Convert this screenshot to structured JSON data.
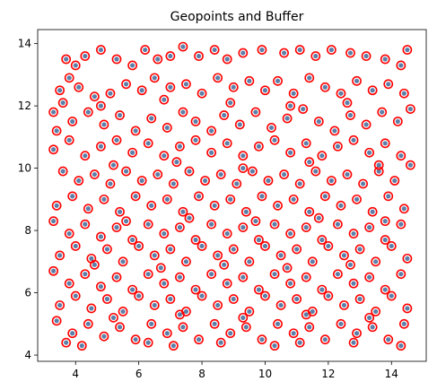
{
  "chart_data": {
    "type": "scatter",
    "title": "Geopoints and Buffer",
    "xlabel": "",
    "ylabel": "",
    "xlim": [
      2.8,
      15.1
    ],
    "ylim": [
      3.8,
      14.45
    ],
    "xticks": [
      4,
      6,
      8,
      10,
      12,
      14
    ],
    "yticks": [
      4,
      6,
      8,
      10,
      12,
      14
    ],
    "grid": false,
    "legend": "none",
    "colors": {
      "point_fill": "#5b7fa8",
      "buffer_outline": "#ff0000",
      "axes": "#000000",
      "background": "#ffffff"
    },
    "series": [
      {
        "marker": "point-with-buffer",
        "points": [
          [
            3.3,
            11.8
          ],
          [
            3.5,
            12.5
          ],
          [
            3.8,
            12.9
          ],
          [
            4.0,
            13.3
          ],
          [
            3.7,
            13.5
          ],
          [
            4.3,
            13.6
          ],
          [
            4.8,
            13.8
          ],
          [
            5.3,
            13.5
          ],
          [
            5.8,
            13.3
          ],
          [
            6.2,
            13.8
          ],
          [
            6.6,
            13.5
          ],
          [
            7.0,
            13.6
          ],
          [
            7.4,
            13.9
          ],
          [
            7.9,
            13.6
          ],
          [
            8.4,
            13.8
          ],
          [
            8.8,
            13.5
          ],
          [
            9.3,
            13.7
          ],
          [
            9.9,
            13.8
          ],
          [
            10.6,
            13.7
          ],
          [
            11.1,
            13.8
          ],
          [
            11.6,
            13.6
          ],
          [
            12.1,
            13.8
          ],
          [
            12.7,
            13.7
          ],
          [
            13.2,
            13.6
          ],
          [
            13.8,
            13.5
          ],
          [
            14.3,
            13.3
          ],
          [
            14.5,
            13.8
          ],
          [
            3.6,
            12.1
          ],
          [
            4.1,
            12.6
          ],
          [
            4.6,
            12.3
          ],
          [
            5.1,
            12.4
          ],
          [
            5.6,
            12.7
          ],
          [
            6.1,
            12.5
          ],
          [
            6.5,
            12.9
          ],
          [
            7.0,
            12.6
          ],
          [
            7.5,
            12.7
          ],
          [
            8.0,
            12.4
          ],
          [
            8.5,
            12.9
          ],
          [
            9.0,
            12.6
          ],
          [
            9.5,
            12.8
          ],
          [
            10.0,
            12.5
          ],
          [
            10.4,
            12.8
          ],
          [
            10.9,
            12.4
          ],
          [
            11.4,
            12.9
          ],
          [
            11.9,
            12.6
          ],
          [
            12.4,
            12.4
          ],
          [
            12.9,
            12.8
          ],
          [
            13.4,
            12.5
          ],
          [
            13.9,
            12.7
          ],
          [
            14.4,
            12.4
          ],
          [
            3.4,
            11.2
          ],
          [
            3.9,
            11.5
          ],
          [
            4.4,
            11.8
          ],
          [
            4.9,
            11.4
          ],
          [
            5.4,
            11.7
          ],
          [
            5.9,
            11.2
          ],
          [
            6.4,
            11.6
          ],
          [
            6.9,
            11.3
          ],
          [
            7.4,
            11.8
          ],
          [
            7.8,
            11.5
          ],
          [
            8.3,
            11.2
          ],
          [
            8.7,
            11.7
          ],
          [
            9.2,
            11.4
          ],
          [
            9.7,
            11.8
          ],
          [
            10.2,
            11.3
          ],
          [
            10.7,
            11.6
          ],
          [
            11.2,
            11.9
          ],
          [
            11.7,
            11.5
          ],
          [
            12.2,
            11.2
          ],
          [
            12.7,
            11.7
          ],
          [
            13.2,
            11.4
          ],
          [
            13.7,
            11.8
          ],
          [
            14.2,
            11.5
          ],
          [
            14.6,
            11.9
          ],
          [
            3.3,
            10.6
          ],
          [
            3.8,
            10.9
          ],
          [
            4.3,
            10.4
          ],
          [
            4.8,
            10.7
          ],
          [
            5.3,
            10.9
          ],
          [
            5.8,
            10.5
          ],
          [
            6.3,
            10.8
          ],
          [
            6.8,
            10.4
          ],
          [
            7.3,
            10.7
          ],
          [
            7.8,
            10.9
          ],
          [
            8.3,
            10.5
          ],
          [
            8.8,
            10.8
          ],
          [
            9.3,
            10.4
          ],
          [
            9.8,
            10.7
          ],
          [
            10.3,
            10.9
          ],
          [
            10.8,
            10.5
          ],
          [
            11.3,
            10.8
          ],
          [
            11.8,
            10.4
          ],
          [
            12.3,
            10.7
          ],
          [
            12.8,
            10.9
          ],
          [
            13.3,
            10.5
          ],
          [
            13.8,
            10.8
          ],
          [
            14.3,
            10.4
          ],
          [
            3.6,
            9.9
          ],
          [
            4.1,
            9.6
          ],
          [
            4.6,
            9.8
          ],
          [
            5.1,
            9.5
          ],
          [
            5.6,
            9.9
          ],
          [
            6.1,
            9.6
          ],
          [
            6.6,
            9.8
          ],
          [
            7.1,
            9.5
          ],
          [
            7.6,
            9.9
          ],
          [
            8.1,
            9.6
          ],
          [
            8.6,
            9.8
          ],
          [
            9.1,
            9.5
          ],
          [
            9.6,
            9.9
          ],
          [
            10.1,
            9.6
          ],
          [
            10.6,
            9.8
          ],
          [
            11.1,
            9.5
          ],
          [
            11.6,
            9.9
          ],
          [
            12.1,
            9.6
          ],
          [
            12.6,
            9.8
          ],
          [
            13.1,
            9.5
          ],
          [
            13.6,
            9.9
          ],
          [
            14.1,
            9.6
          ],
          [
            14.6,
            10.1
          ],
          [
            3.4,
            8.8
          ],
          [
            3.9,
            9.1
          ],
          [
            4.4,
            8.7
          ],
          [
            4.9,
            9.0
          ],
          [
            5.4,
            8.6
          ],
          [
            5.9,
            9.1
          ],
          [
            6.4,
            8.8
          ],
          [
            6.9,
            9.0
          ],
          [
            7.4,
            8.6
          ],
          [
            7.9,
            9.1
          ],
          [
            8.4,
            8.8
          ],
          [
            8.9,
            9.0
          ],
          [
            9.4,
            8.6
          ],
          [
            9.9,
            9.1
          ],
          [
            10.4,
            8.8
          ],
          [
            10.9,
            9.0
          ],
          [
            11.4,
            8.6
          ],
          [
            11.9,
            9.1
          ],
          [
            12.4,
            8.8
          ],
          [
            12.9,
            9.0
          ],
          [
            13.4,
            8.6
          ],
          [
            13.9,
            9.1
          ],
          [
            14.4,
            8.7
          ],
          [
            3.3,
            8.3
          ],
          [
            3.8,
            7.9
          ],
          [
            4.3,
            8.2
          ],
          [
            4.8,
            7.8
          ],
          [
            5.3,
            8.1
          ],
          [
            5.8,
            7.7
          ],
          [
            6.3,
            8.2
          ],
          [
            6.8,
            7.9
          ],
          [
            7.3,
            8.1
          ],
          [
            7.8,
            7.7
          ],
          [
            8.3,
            8.2
          ],
          [
            8.8,
            7.9
          ],
          [
            9.3,
            8.1
          ],
          [
            9.8,
            7.7
          ],
          [
            10.3,
            8.2
          ],
          [
            10.8,
            7.9
          ],
          [
            11.3,
            8.1
          ],
          [
            11.8,
            7.7
          ],
          [
            12.3,
            8.2
          ],
          [
            12.8,
            7.9
          ],
          [
            13.3,
            8.1
          ],
          [
            13.8,
            7.7
          ],
          [
            14.3,
            8.2
          ],
          [
            3.5,
            7.2
          ],
          [
            4.0,
            7.5
          ],
          [
            4.5,
            7.1
          ],
          [
            5.0,
            7.4
          ],
          [
            5.5,
            7.0
          ],
          [
            6.0,
            7.5
          ],
          [
            6.5,
            7.2
          ],
          [
            7.0,
            7.4
          ],
          [
            7.5,
            7.0
          ],
          [
            8.0,
            7.5
          ],
          [
            8.5,
            7.2
          ],
          [
            9.0,
            7.4
          ],
          [
            9.5,
            7.0
          ],
          [
            10.0,
            7.5
          ],
          [
            10.5,
            7.2
          ],
          [
            11.0,
            7.4
          ],
          [
            11.5,
            7.0
          ],
          [
            12.0,
            7.5
          ],
          [
            12.5,
            7.2
          ],
          [
            13.0,
            7.4
          ],
          [
            13.5,
            7.0
          ],
          [
            14.0,
            7.5
          ],
          [
            14.5,
            7.1
          ],
          [
            3.3,
            6.7
          ],
          [
            3.8,
            6.3
          ],
          [
            4.3,
            6.6
          ],
          [
            4.8,
            6.2
          ],
          [
            5.3,
            6.5
          ],
          [
            5.8,
            6.1
          ],
          [
            6.3,
            6.6
          ],
          [
            6.8,
            6.3
          ],
          [
            7.3,
            6.5
          ],
          [
            7.8,
            6.1
          ],
          [
            8.3,
            6.6
          ],
          [
            8.8,
            6.3
          ],
          [
            9.3,
            6.5
          ],
          [
            9.8,
            6.1
          ],
          [
            10.3,
            6.6
          ],
          [
            10.8,
            6.3
          ],
          [
            11.3,
            6.5
          ],
          [
            11.8,
            6.1
          ],
          [
            12.3,
            6.6
          ],
          [
            12.8,
            6.3
          ],
          [
            13.3,
            6.5
          ],
          [
            13.8,
            6.1
          ],
          [
            14.3,
            6.6
          ],
          [
            3.5,
            5.6
          ],
          [
            4.0,
            5.9
          ],
          [
            4.5,
            5.5
          ],
          [
            5.0,
            5.8
          ],
          [
            5.5,
            5.4
          ],
          [
            6.0,
            5.9
          ],
          [
            6.5,
            5.6
          ],
          [
            7.0,
            5.8
          ],
          [
            7.5,
            5.4
          ],
          [
            8.0,
            5.9
          ],
          [
            8.5,
            5.6
          ],
          [
            9.0,
            5.8
          ],
          [
            9.5,
            5.4
          ],
          [
            10.0,
            5.9
          ],
          [
            10.5,
            5.6
          ],
          [
            11.0,
            5.8
          ],
          [
            11.5,
            5.4
          ],
          [
            12.0,
            5.9
          ],
          [
            12.5,
            5.6
          ],
          [
            13.0,
            5.8
          ],
          [
            13.5,
            5.4
          ],
          [
            14.0,
            5.9
          ],
          [
            14.5,
            5.5
          ],
          [
            3.4,
            5.1
          ],
          [
            3.9,
            4.7
          ],
          [
            4.4,
            5.0
          ],
          [
            4.9,
            4.6
          ],
          [
            5.4,
            4.9
          ],
          [
            5.9,
            4.5
          ],
          [
            6.4,
            5.0
          ],
          [
            6.9,
            4.7
          ],
          [
            7.4,
            4.9
          ],
          [
            7.9,
            4.5
          ],
          [
            8.4,
            5.0
          ],
          [
            8.9,
            4.7
          ],
          [
            9.4,
            4.9
          ],
          [
            9.9,
            4.5
          ],
          [
            10.4,
            5.0
          ],
          [
            10.9,
            4.7
          ],
          [
            11.4,
            4.9
          ],
          [
            11.9,
            4.5
          ],
          [
            12.4,
            5.0
          ],
          [
            12.9,
            4.7
          ],
          [
            13.4,
            4.9
          ],
          [
            13.9,
            4.5
          ],
          [
            14.4,
            5.0
          ],
          [
            3.7,
            4.4
          ],
          [
            4.2,
            4.3
          ],
          [
            6.3,
            4.4
          ],
          [
            7.1,
            4.3
          ],
          [
            8.6,
            4.4
          ],
          [
            10.3,
            4.3
          ],
          [
            11.1,
            4.4
          ],
          [
            12.8,
            4.4
          ],
          [
            14.3,
            4.3
          ],
          [
            4.8,
            12.0
          ],
          [
            6.8,
            12.2
          ],
          [
            8.9,
            12.1
          ],
          [
            10.8,
            12.0
          ],
          [
            12.6,
            12.1
          ],
          [
            5.2,
            10.1
          ],
          [
            7.2,
            10.2
          ],
          [
            9.3,
            10.0
          ],
          [
            11.4,
            10.2
          ],
          [
            13.6,
            10.1
          ],
          [
            5.6,
            8.3
          ],
          [
            7.6,
            8.4
          ],
          [
            9.7,
            8.3
          ],
          [
            11.7,
            8.4
          ],
          [
            13.8,
            8.3
          ],
          [
            4.6,
            6.9
          ],
          [
            6.7,
            6.8
          ],
          [
            8.7,
            6.9
          ],
          [
            10.7,
            6.8
          ],
          [
            12.7,
            6.9
          ],
          [
            5.2,
            5.2
          ],
          [
            7.3,
            5.3
          ],
          [
            9.3,
            5.2
          ],
          [
            11.3,
            5.3
          ],
          [
            13.3,
            5.2
          ]
        ]
      }
    ]
  }
}
